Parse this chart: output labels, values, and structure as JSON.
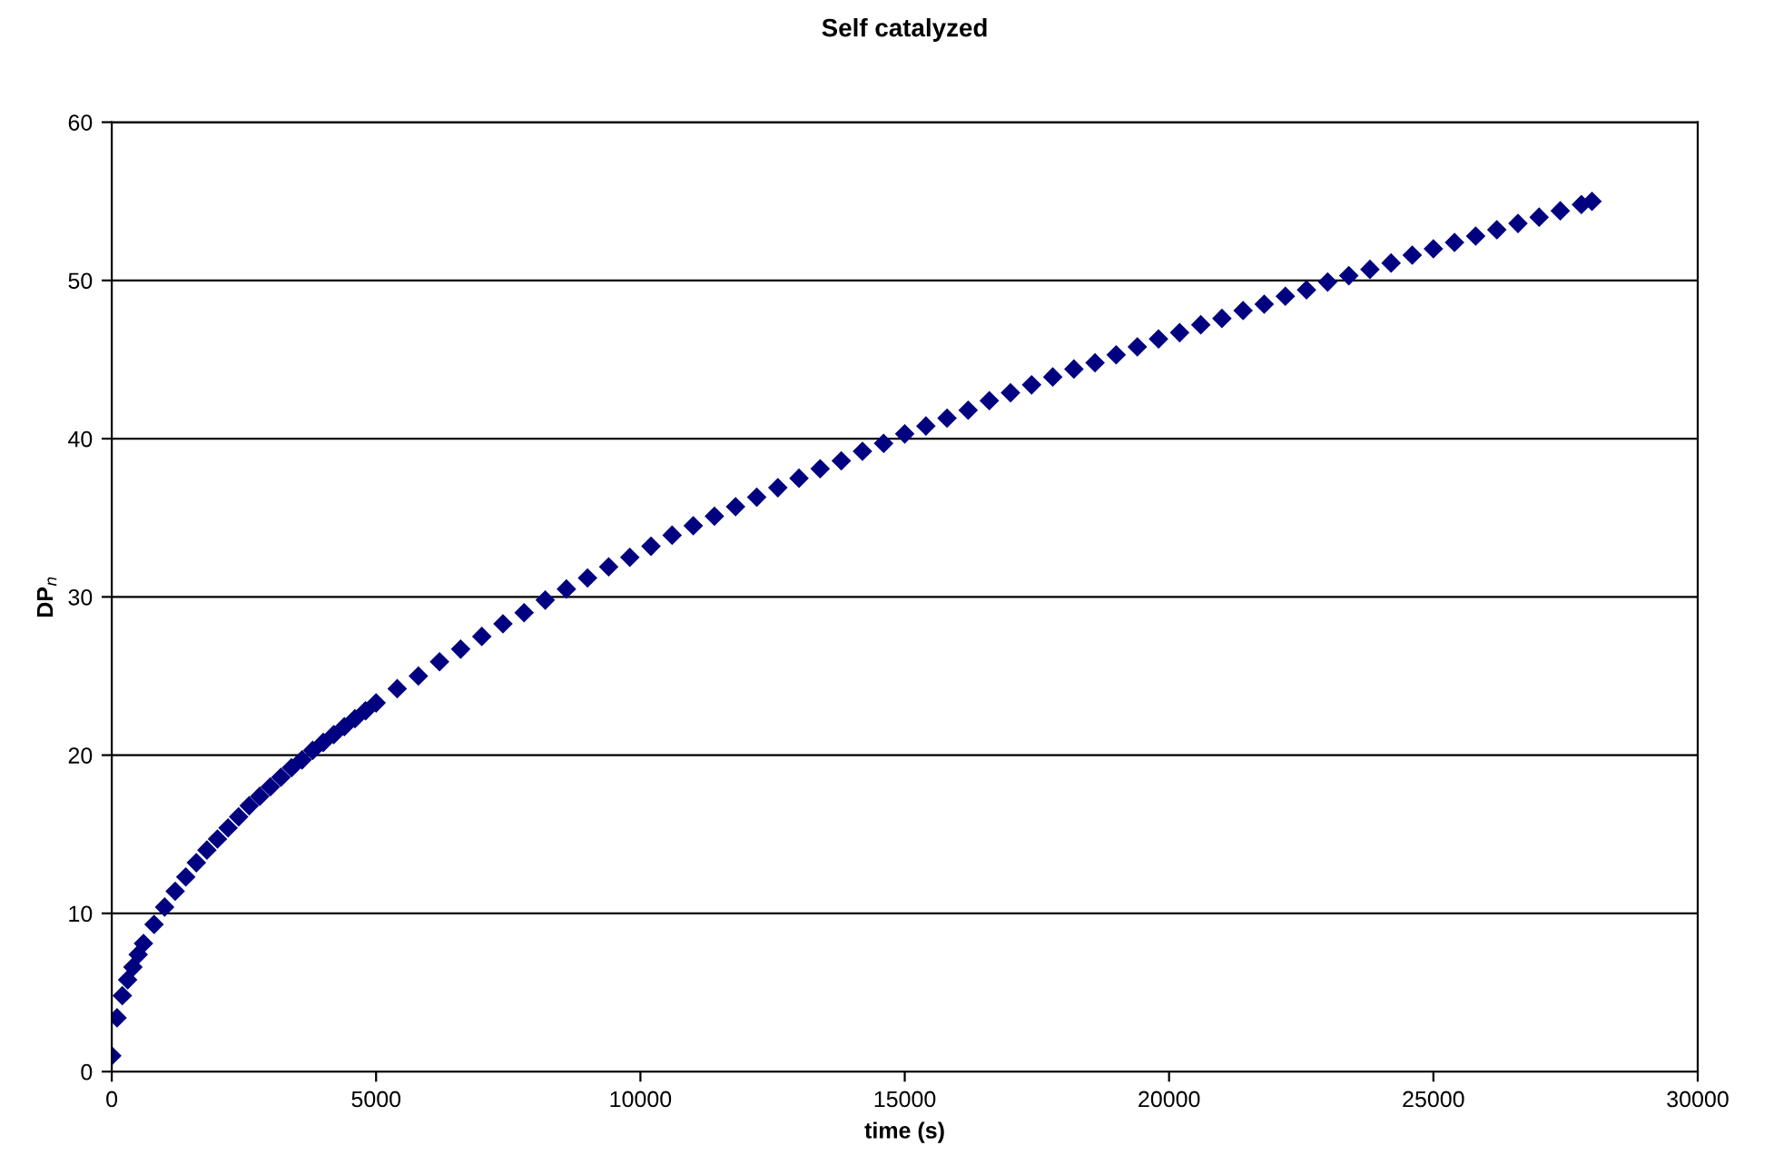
{
  "chart_data": {
    "type": "scatter",
    "title": "Self catalyzed",
    "xlabel": "time (s)",
    "ylabel": "DP$_{n}$",
    "x": [
      0,
      100,
      200,
      300,
      400,
      500,
      600,
      800,
      1000,
      1200,
      1400,
      1600,
      1800,
      2000,
      2200,
      2400,
      2600,
      2800,
      3000,
      3200,
      3400,
      3600,
      3800,
      4000,
      4200,
      4400,
      4600,
      4800,
      5000,
      5400,
      5800,
      6200,
      6600,
      7000,
      7400,
      7800,
      8200,
      8600,
      9000,
      9400,
      9800,
      10200,
      10600,
      11000,
      11400,
      11800,
      12200,
      12600,
      13000,
      13400,
      13800,
      14200,
      14600,
      15000,
      15400,
      15800,
      16200,
      16600,
      17000,
      17400,
      17800,
      18200,
      18600,
      19000,
      19400,
      19800,
      20200,
      20600,
      21000,
      21400,
      21800,
      22200,
      22600,
      23000,
      23400,
      23800,
      24200,
      24600,
      25000,
      25400,
      25800,
      26200,
      26600,
      27000,
      27400,
      27800,
      28000
    ],
    "series": [
      {
        "color": "#000080",
        "values": [
          1.0,
          3.4,
          4.8,
          5.8,
          6.6,
          7.4,
          8.1,
          9.3,
          10.4,
          11.4,
          12.3,
          13.2,
          14.0,
          14.7,
          15.4,
          16.1,
          16.8,
          17.4,
          18.0,
          18.6,
          19.2,
          19.7,
          20.3,
          20.8,
          21.3,
          21.8,
          22.3,
          22.8,
          23.3,
          24.2,
          25.0,
          25.9,
          26.7,
          27.5,
          28.3,
          29.0,
          29.8,
          30.5,
          31.2,
          31.9,
          32.5,
          33.2,
          33.9,
          34.5,
          35.1,
          35.7,
          36.3,
          36.9,
          37.5,
          38.1,
          38.6,
          39.2,
          39.7,
          40.3,
          40.8,
          41.3,
          41.8,
          42.4,
          42.9,
          43.4,
          43.9,
          44.4,
          44.8,
          45.3,
          45.8,
          46.3,
          46.7,
          47.2,
          47.6,
          48.1,
          48.5,
          49.0,
          49.4,
          49.9,
          50.3,
          50.7,
          51.1,
          51.6,
          52.0,
          52.4,
          52.8,
          53.2,
          53.6,
          54.0,
          54.4,
          54.8,
          55.0
        ]
      }
    ],
    "xlim": [
      0,
      30000
    ],
    "xticks": [
      0,
      5000,
      10000,
      15000,
      20000,
      25000,
      30000
    ],
    "ylim": [
      0,
      60
    ],
    "yticks": [
      0,
      10,
      20,
      30,
      40,
      50,
      60
    ],
    "grid": "y",
    "marker": "diamond",
    "legend": false
  }
}
